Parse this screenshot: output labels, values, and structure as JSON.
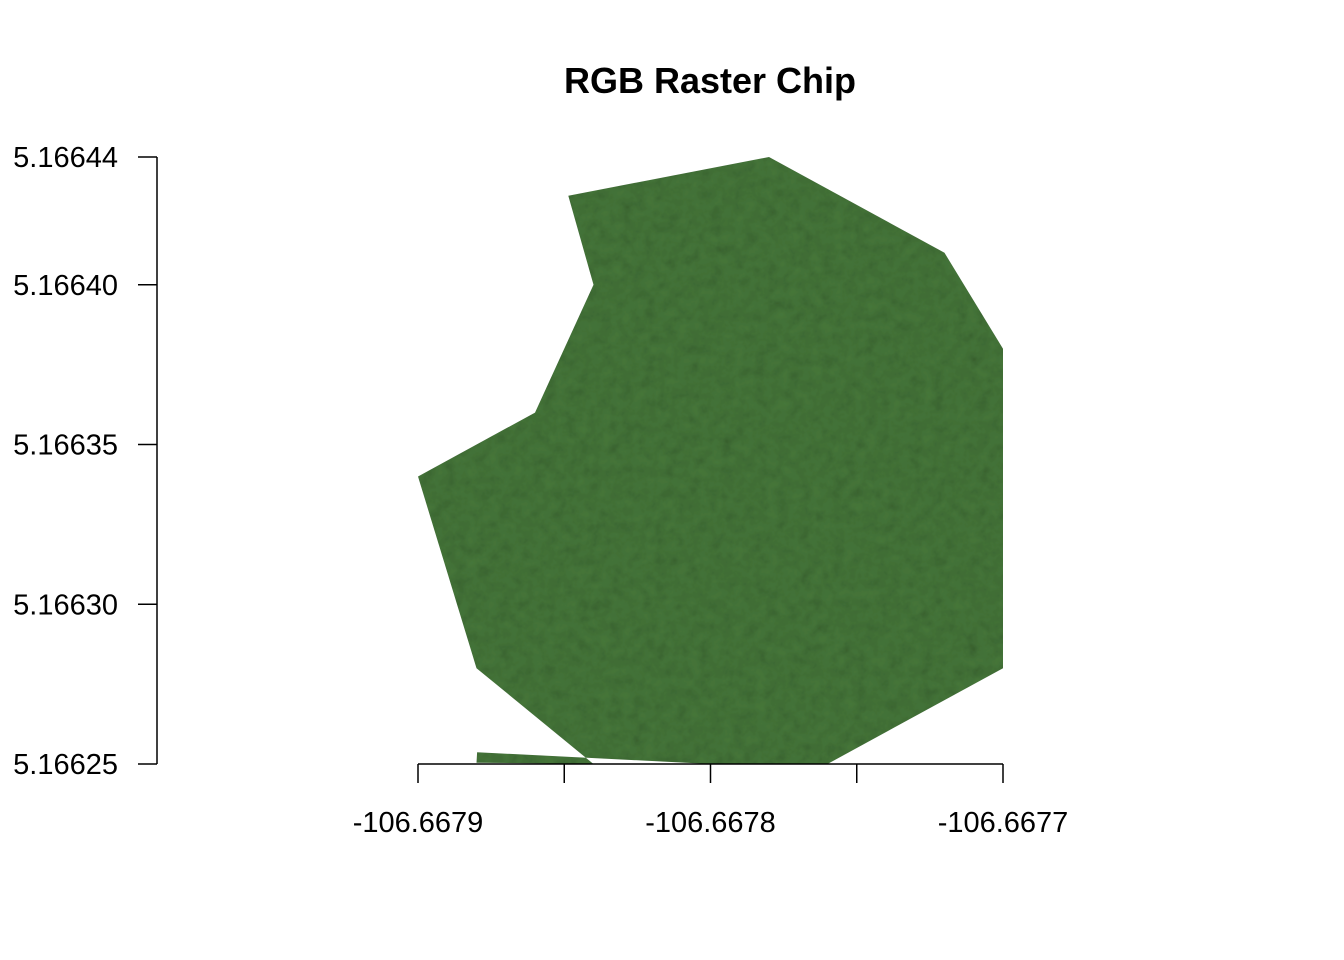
{
  "chart_data": {
    "type": "raster",
    "title": "RGB Raster Chip",
    "xlabel": "",
    "ylabel": "",
    "xlim": [
      -106.6679,
      -106.6677
    ],
    "ylim": [
      5.16625,
      5.16644
    ],
    "x_ticks": [
      -106.6679,
      -106.66785,
      -106.6678,
      -106.66775,
      -106.6677
    ],
    "x_tick_labels": [
      "-106.6679",
      "",
      "-106.6678",
      "",
      "-106.6677"
    ],
    "y_ticks": [
      5.16625,
      5.1663,
      5.16635,
      5.1664,
      5.16644
    ],
    "y_tick_labels": [
      "5.16625",
      "5.16630",
      "5.16635",
      "5.16640",
      "5.16644"
    ],
    "grid": false,
    "legend": "none",
    "raster_fill_color": "#46773a",
    "raster_polygon": [
      [
        -106.66784,
        5.16625
      ],
      [
        -106.66788,
        5.1662504
      ],
      [
        -106.6678798,
        5.1662537
      ],
      [
        -106.6678,
        5.16625
      ],
      [
        -106.66776,
        5.16625
      ],
      [
        -106.6677,
        5.16628
      ],
      [
        -106.6677,
        5.16635
      ],
      [
        -106.6677,
        5.16638
      ],
      [
        -106.66772,
        5.16641
      ],
      [
        -106.66778,
        5.16644
      ],
      [
        -106.6678486,
        5.1664279
      ],
      [
        -106.66784,
        5.1664
      ],
      [
        -106.66786,
        5.16636
      ],
      [
        -106.6679,
        5.16634
      ],
      [
        -106.66788,
        5.16628
      ]
    ]
  }
}
